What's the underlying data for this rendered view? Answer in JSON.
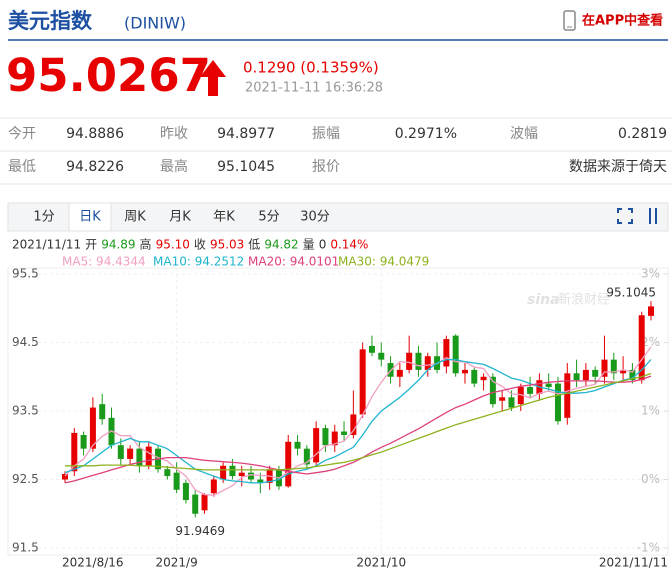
{
  "header": {
    "title": "美元指数",
    "code": "(DINIW)",
    "app_link": "在APP中查看"
  },
  "quote": {
    "price": "95.0267",
    "change": "0.1290 (0.1359%)",
    "time": "2021-11-11 16:36:28"
  },
  "stats": {
    "rows": [
      [
        "今开",
        "94.8886",
        "昨收",
        "94.8977",
        "振幅",
        "0.2971%",
        "波幅",
        "0.2819"
      ],
      [
        "最低",
        "94.8226",
        "最高",
        "95.1045",
        "报价",
        "数据来源于倚天"
      ]
    ]
  },
  "tabs": {
    "items": [
      "1分",
      "日K",
      "周K",
      "月K",
      "年K",
      "5分",
      "30分"
    ],
    "active": 1
  },
  "info": [
    {
      "text": "2021/11/11",
      "color": "#333333"
    },
    {
      "text": "开",
      "color": "#333333"
    },
    {
      "text": "94.89",
      "color": "#1a9a1a"
    },
    {
      "text": "高",
      "color": "#333333"
    },
    {
      "text": "95.10",
      "color": "#e60000"
    },
    {
      "text": "收",
      "color": "#333333"
    },
    {
      "text": "95.03",
      "color": "#e60000"
    },
    {
      "text": "低",
      "color": "#333333"
    },
    {
      "text": "94.82",
      "color": "#1a9a1a"
    },
    {
      "text": "量",
      "color": "#333333"
    },
    {
      "text": "0",
      "color": "#333333"
    },
    {
      "text": "0.14%",
      "color": "#e60000"
    }
  ],
  "watermark": [
    "sina",
    "新浪财经"
  ],
  "chart_data": {
    "type": "candlestick",
    "categories": [
      "2021/8/16",
      null,
      null,
      null,
      null,
      null,
      null,
      null,
      null,
      null,
      null,
      null,
      "2021/9",
      null,
      null,
      null,
      null,
      null,
      null,
      null,
      null,
      null,
      null,
      null,
      null,
      null,
      null,
      null,
      null,
      null,
      null,
      null,
      null,
      null,
      "2021/10",
      null,
      null,
      null,
      null,
      null,
      null,
      null,
      null,
      null,
      null,
      null,
      null,
      null,
      null,
      null,
      null,
      null,
      null,
      null,
      null,
      null,
      null,
      null,
      null,
      null,
      null,
      null,
      null,
      "2021/11/11"
    ],
    "candles": {
      "open": [
        92.5,
        92.62,
        93.15,
        92.95,
        93.6,
        93.4,
        93.0,
        92.8,
        92.95,
        92.7,
        92.95,
        92.65,
        92.6,
        92.45,
        92.28,
        92.05,
        92.3,
        92.5,
        92.7,
        92.55,
        92.6,
        92.5,
        92.45,
        92.65,
        92.4,
        93.05,
        92.95,
        92.75,
        93.25,
        93.0,
        93.2,
        93.15,
        93.45,
        94.45,
        94.35,
        94.2,
        94.0,
        94.1,
        94.35,
        94.1,
        94.3,
        94.15,
        94.6,
        94.05,
        94.1,
        93.95,
        94.0,
        93.65,
        93.7,
        93.6,
        93.85,
        93.75,
        93.9,
        93.9,
        93.4,
        94.05,
        93.95,
        94.1,
        94.0,
        94.25,
        94.05,
        94.1,
        93.95,
        94.8886
      ],
      "high": [
        92.62,
        93.25,
        93.2,
        93.7,
        93.75,
        93.55,
        93.1,
        93.0,
        93.05,
        93.05,
        93.0,
        92.7,
        92.75,
        92.5,
        92.35,
        92.3,
        92.55,
        92.75,
        92.8,
        92.7,
        92.7,
        92.6,
        92.7,
        92.7,
        93.15,
        93.15,
        93.0,
        93.35,
        93.3,
        93.3,
        93.35,
        93.8,
        94.5,
        94.6,
        94.5,
        94.3,
        94.2,
        94.6,
        94.45,
        94.35,
        94.5,
        94.6,
        94.62,
        94.2,
        94.15,
        94.05,
        94.05,
        93.8,
        93.8,
        93.9,
        94.0,
        94.05,
        94.05,
        94.0,
        94.2,
        94.25,
        94.2,
        94.15,
        94.6,
        94.35,
        94.3,
        94.2,
        94.95,
        95.1045
      ],
      "low": [
        92.45,
        92.55,
        92.85,
        92.9,
        93.3,
        92.95,
        92.7,
        92.7,
        92.6,
        92.65,
        92.6,
        92.5,
        92.3,
        92.15,
        91.9469,
        92.0,
        92.25,
        92.45,
        92.5,
        92.4,
        92.45,
        92.3,
        92.35,
        92.35,
        92.38,
        92.85,
        92.65,
        92.7,
        92.9,
        92.9,
        93.05,
        93.1,
        93.4,
        94.3,
        94.15,
        93.9,
        93.85,
        94.05,
        94.0,
        94.0,
        94.05,
        94.05,
        94.0,
        93.9,
        93.85,
        93.8,
        93.55,
        93.5,
        93.5,
        93.5,
        93.7,
        93.65,
        93.8,
        93.3,
        93.3,
        93.85,
        93.85,
        93.9,
        93.9,
        93.95,
        93.95,
        93.9,
        93.9,
        94.8226
      ],
      "close": [
        92.58,
        93.18,
        92.95,
        93.55,
        93.38,
        93.0,
        92.8,
        92.95,
        92.7,
        92.98,
        92.65,
        92.55,
        92.35,
        92.2,
        92.0,
        92.28,
        92.5,
        92.7,
        92.55,
        92.6,
        92.5,
        92.45,
        92.65,
        92.4,
        93.05,
        92.95,
        92.72,
        93.25,
        93.0,
        93.2,
        93.15,
        93.45,
        94.4,
        94.35,
        94.25,
        94.0,
        94.1,
        94.35,
        94.1,
        94.3,
        94.1,
        94.55,
        94.05,
        94.1,
        93.9,
        94.0,
        93.6,
        93.7,
        93.55,
        93.85,
        93.75,
        93.95,
        93.85,
        93.35,
        94.05,
        93.95,
        94.1,
        94.0,
        94.25,
        94.05,
        94.1,
        93.95,
        94.8977,
        95.0267
      ]
    },
    "up_color": "#e60000",
    "down_color": "#1a9a1a",
    "ma_series": [
      {
        "label": "MA5: 94.4344",
        "color": "#f2a0c4",
        "values": [
          92.55,
          92.7,
          92.8,
          93.0,
          93.13,
          93.21,
          93.14,
          93.14,
          92.97,
          92.89,
          92.82,
          92.77,
          92.65,
          92.55,
          92.35,
          92.28,
          92.27,
          92.34,
          92.41,
          92.53,
          92.57,
          92.56,
          92.55,
          92.52,
          92.61,
          92.7,
          92.75,
          92.87,
          92.99,
          93.02,
          93.06,
          93.21,
          93.44,
          93.71,
          93.92,
          94.09,
          94.22,
          94.21,
          94.16,
          94.17,
          94.19,
          94.28,
          94.22,
          94.22,
          94.14,
          94.12,
          93.93,
          93.86,
          93.75,
          93.74,
          93.69,
          93.76,
          93.79,
          93.75,
          93.79,
          93.83,
          93.86,
          93.89,
          94.07,
          94.07,
          94.1,
          94.07,
          94.25,
          94.4344
        ]
      },
      {
        "label": "MA10: 94.2512",
        "color": "#1fb5cf",
        "values": [
          92.6,
          92.65,
          92.7,
          92.8,
          92.9,
          93.0,
          93.05,
          93.1,
          93.05,
          93.05,
          93.0,
          92.95,
          92.85,
          92.75,
          92.65,
          92.6,
          92.55,
          92.5,
          92.48,
          92.47,
          92.45,
          92.45,
          92.47,
          92.5,
          92.58,
          92.62,
          92.65,
          92.7,
          92.78,
          92.83,
          92.9,
          92.97,
          93.15,
          93.35,
          93.5,
          93.6,
          93.7,
          93.82,
          93.95,
          94.1,
          94.2,
          94.25,
          94.25,
          94.22,
          94.2,
          94.18,
          94.12,
          94.05,
          93.98,
          93.95,
          93.9,
          93.85,
          93.82,
          93.78,
          93.76,
          93.76,
          93.77,
          93.8,
          93.85,
          93.9,
          93.95,
          93.98,
          94.1,
          94.2512
        ]
      },
      {
        "label": "MA20: 94.0101",
        "color": "#e0407c",
        "values": [
          92.45,
          92.48,
          92.52,
          92.56,
          92.6,
          92.64,
          92.68,
          92.72,
          92.75,
          92.78,
          92.8,
          92.82,
          92.82,
          92.82,
          92.8,
          92.78,
          92.77,
          92.76,
          92.75,
          92.74,
          92.72,
          92.7,
          92.67,
          92.64,
          92.62,
          92.6,
          92.58,
          92.6,
          92.62,
          92.65,
          92.7,
          92.75,
          92.82,
          92.9,
          92.97,
          93.03,
          93.1,
          93.17,
          93.24,
          93.32,
          93.4,
          93.48,
          93.55,
          93.6,
          93.66,
          93.72,
          93.77,
          93.8,
          93.83,
          93.86,
          93.88,
          93.9,
          93.92,
          93.93,
          93.94,
          93.94,
          93.94,
          93.94,
          93.93,
          93.92,
          93.92,
          93.93,
          93.96,
          94.0101
        ]
      },
      {
        "label": "MA30: 94.0479",
        "color": "#8db21e",
        "values": [
          92.7,
          92.7,
          92.7,
          92.7,
          92.71,
          92.71,
          92.71,
          92.71,
          92.7,
          92.7,
          92.69,
          92.68,
          92.67,
          92.66,
          92.65,
          92.64,
          92.64,
          92.64,
          92.64,
          92.64,
          92.64,
          92.64,
          92.64,
          92.64,
          92.65,
          92.66,
          92.67,
          92.69,
          92.71,
          92.73,
          92.75,
          92.78,
          92.82,
          92.86,
          92.9,
          92.95,
          93.0,
          93.05,
          93.1,
          93.15,
          93.2,
          93.25,
          93.3,
          93.34,
          93.38,
          93.42,
          93.46,
          93.5,
          93.54,
          93.58,
          93.62,
          93.66,
          93.7,
          93.73,
          93.76,
          93.79,
          93.82,
          93.85,
          93.88,
          93.91,
          93.94,
          93.97,
          94.0,
          94.0479
        ]
      }
    ],
    "ylim": [
      91.5,
      95.5
    ],
    "yticks": [
      91.5,
      92.5,
      93.5,
      94.5,
      95.5
    ],
    "y2lim": [
      -1,
      3
    ],
    "y2ticks": [
      {
        "value": -1,
        "label": "-1%"
      },
      {
        "value": 0,
        "label": "0%"
      },
      {
        "value": 1,
        "label": "1%"
      },
      {
        "value": 2,
        "label": "2%"
      },
      {
        "value": 3,
        "label": "3%"
      }
    ],
    "grid": true,
    "annotations": {
      "high_index": 63,
      "low_index": 14
    }
  }
}
